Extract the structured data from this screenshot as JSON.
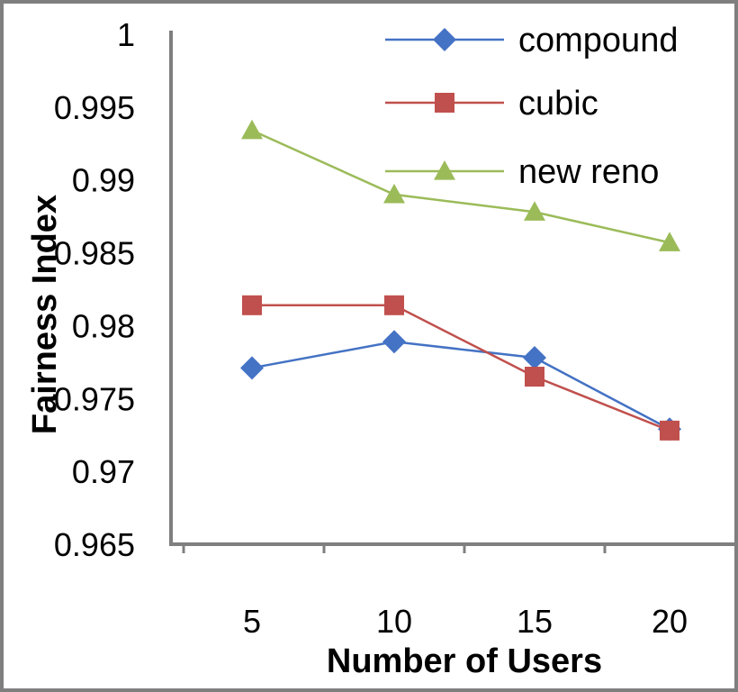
{
  "chart_data": {
    "type": "line",
    "xlabel": "Number of Users",
    "ylabel": "Fairness Index",
    "categories": [
      "5",
      "10",
      "15",
      "20"
    ],
    "ylim": [
      0.965,
      1
    ],
    "yticks": [
      "0.965",
      "0.97",
      "0.975",
      "0.98",
      "0.985",
      "0.99",
      "0.995",
      "1"
    ],
    "grid": false,
    "legend_position": "top-right",
    "series": [
      {
        "name": "compound",
        "values": [
          0.9771,
          0.9789,
          0.9778,
          0.9729
        ],
        "color": "#4472C4",
        "marker": "diamond"
      },
      {
        "name": "cubic",
        "values": [
          0.9814,
          0.9814,
          0.9765,
          0.9728
        ],
        "color": "#C0504D",
        "marker": "square"
      },
      {
        "name": "new reno",
        "values": [
          0.9934,
          0.989,
          0.9878,
          0.9857
        ],
        "color": "#9BBB59",
        "marker": "triangle"
      }
    ]
  }
}
